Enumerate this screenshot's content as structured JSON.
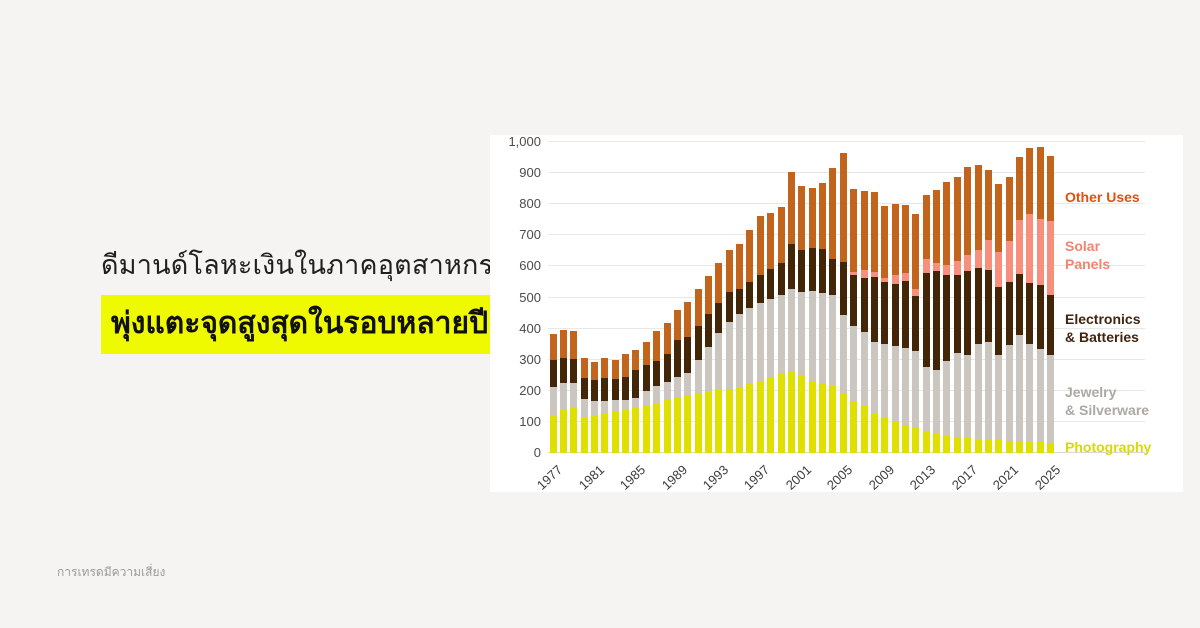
{
  "title": {
    "line1": "ดีมานด์โลหะเงินในภาคอุตสาหกรรม",
    "line2_highlight": "พุ่งแตะจุดสูงสุดในรอบหลายปี"
  },
  "footer": {
    "disclaimer": "การเทรดมีความเสี่ยง"
  },
  "colors": {
    "background": "#F5F4F2",
    "panel": "#FFFFFF",
    "highlight": "#EFF900",
    "gridline": "#EAE8E5"
  },
  "chart_data": {
    "type": "bar",
    "stacked": true,
    "title": "",
    "xlabel": "",
    "ylabel": "",
    "ylim": [
      0,
      1000
    ],
    "grid": true,
    "legend_position": "right",
    "y_tick_values": [
      0,
      100,
      200,
      300,
      400,
      500,
      600,
      700,
      800,
      900,
      1000
    ],
    "y_tick_labels": [
      "0",
      "100",
      "200",
      "300",
      "400",
      "500",
      "600",
      "700",
      "800",
      "900",
      "1,000"
    ],
    "x_tick_labels": [
      "1977",
      "1981",
      "1985",
      "1989",
      "1993",
      "1997",
      "2001",
      "2005",
      "2009",
      "2013",
      "2017",
      "2021",
      "2025"
    ],
    "years": [
      1977,
      1978,
      1979,
      1980,
      1981,
      1982,
      1983,
      1984,
      1985,
      1986,
      1987,
      1988,
      1989,
      1990,
      1991,
      1992,
      1993,
      1994,
      1995,
      1996,
      1997,
      1998,
      1999,
      2000,
      2001,
      2002,
      2003,
      2004,
      2005,
      2006,
      2007,
      2008,
      2009,
      2010,
      2011,
      2012,
      2013,
      2014,
      2015,
      2016,
      2017,
      2018,
      2019,
      2020,
      2021,
      2022,
      2023,
      2024,
      2025
    ],
    "series": [
      {
        "name": "Photography",
        "color": "#DFE000",
        "values": [
          121,
          137,
          146,
          116,
          118,
          126,
          134,
          139,
          146,
          150,
          161,
          172,
          180,
          185,
          191,
          196,
          202,
          207,
          212,
          223,
          230,
          241,
          255,
          262,
          250,
          231,
          223,
          215,
          194,
          166,
          152,
          124,
          112,
          99,
          91,
          80,
          72,
          64,
          59,
          53,
          48,
          45,
          43,
          42,
          40,
          38,
          36,
          34,
          33
        ]
      },
      {
        "name": "Jewelry & Silverware",
        "color": "#CCC6C1",
        "values": [
          91,
          88,
          78,
          58,
          48,
          41,
          35,
          32,
          32,
          51,
          53,
          56,
          64,
          72,
          109,
          144,
          183,
          213,
          236,
          242,
          251,
          253,
          253,
          264,
          269,
          289,
          293,
          294,
          249,
          243,
          236,
          233,
          238,
          246,
          247,
          248,
          204,
          204,
          236,
          269,
          268,
          305,
          314,
          274,
          307,
          340,
          316,
          302,
          283
        ]
      },
      {
        "name": "Electronics & Batteries",
        "color": "#432508",
        "values": [
          88,
          82,
          77,
          66,
          69,
          75,
          70,
          74,
          90,
          81,
          82,
          89,
          118,
          116,
          110,
          107,
          98,
          98,
          81,
          85,
          91,
          99,
          103,
          147,
          133,
          140,
          139,
          114,
          171,
          165,
          175,
          208,
          199,
          200,
          215,
          177,
          304,
          317,
          279,
          252,
          269,
          244,
          231,
          218,
          203,
          199,
          196,
          203,
          191
        ]
      },
      {
        "name": "Solar Panels",
        "color": "#F78F7C",
        "values": [
          0,
          0,
          0,
          0,
          0,
          0,
          0,
          0,
          0,
          0,
          0,
          0,
          0,
          0,
          0,
          0,
          0,
          0,
          0,
          0,
          0,
          0,
          0,
          0,
          0,
          0,
          0,
          0,
          0,
          8,
          25,
          18,
          15,
          28,
          25,
          23,
          44,
          25,
          30,
          43,
          51,
          58,
          97,
          113,
          131,
          172,
          222,
          215,
          238
        ]
      },
      {
        "name": "Other Uses",
        "color": "#C2641B",
        "values": [
          83,
          89,
          93,
          67,
          58,
          65,
          61,
          73,
          63,
          75,
          97,
          101,
          99,
          113,
          116,
          121,
          127,
          134,
          143,
          168,
          190,
          179,
          181,
          230,
          206,
          191,
          212,
          294,
          352,
          267,
          255,
          255,
          230,
          229,
          218,
          239,
          207,
          237,
          267,
          270,
          284,
          274,
          225,
          217,
          206,
          203,
          211,
          230,
          210
        ]
      }
    ],
    "legend": [
      {
        "label": "Other Uses",
        "color": "#E2500E"
      },
      {
        "label": "Solar\nPanels",
        "color": "#F5836F"
      },
      {
        "label": "Electronics\n& Batteries",
        "color": "#42250F"
      },
      {
        "label": "Jewelry\n& Silverware",
        "color": "#ADA8A3"
      },
      {
        "label": "Photography",
        "color": "#D6DB00"
      }
    ]
  }
}
